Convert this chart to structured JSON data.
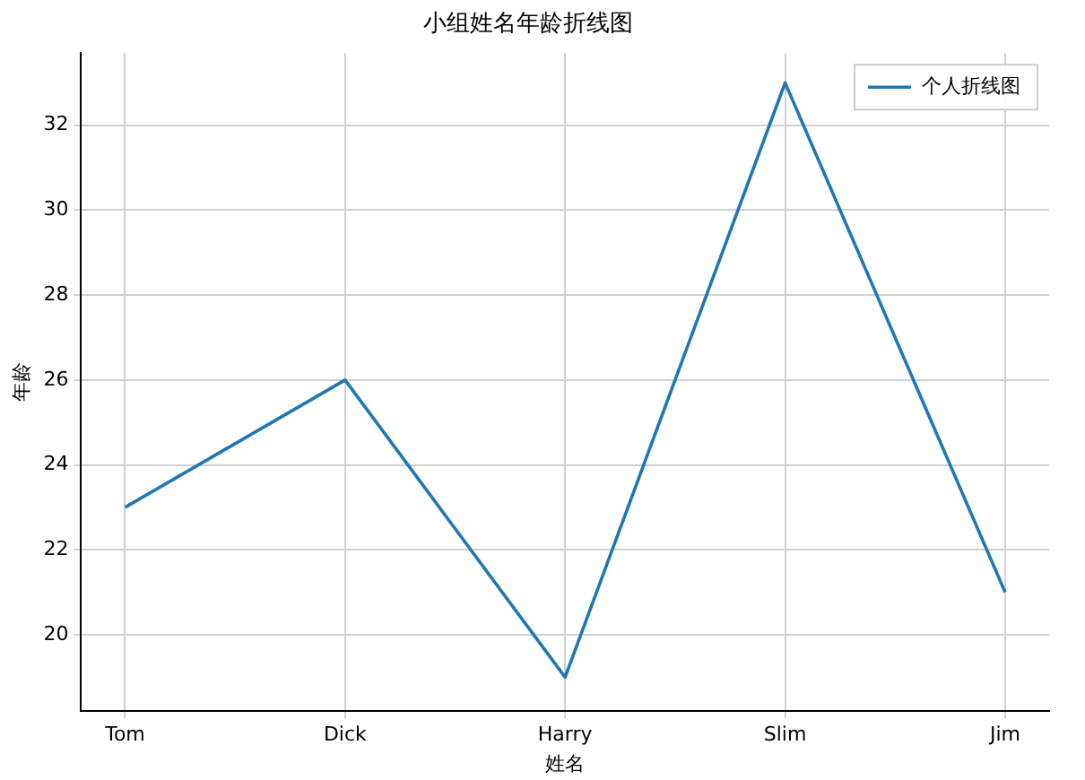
{
  "chart_data": {
    "type": "line",
    "title": "小组姓名年龄折线图",
    "xlabel": "姓名",
    "ylabel": "年龄",
    "categories": [
      "Tom",
      "Dick",
      "Harry",
      "Slim",
      "Jim"
    ],
    "series": [
      {
        "name": "个人折线图",
        "color": "#1f77b4",
        "values": [
          23,
          26,
          19,
          33,
          21
        ]
      }
    ],
    "ylim": [
      18.2,
      33.7
    ],
    "yticks": [
      20,
      22,
      24,
      26,
      28,
      30,
      32
    ],
    "grid": true,
    "legend": "top right",
    "marker": "none",
    "line_style": "solid"
  }
}
